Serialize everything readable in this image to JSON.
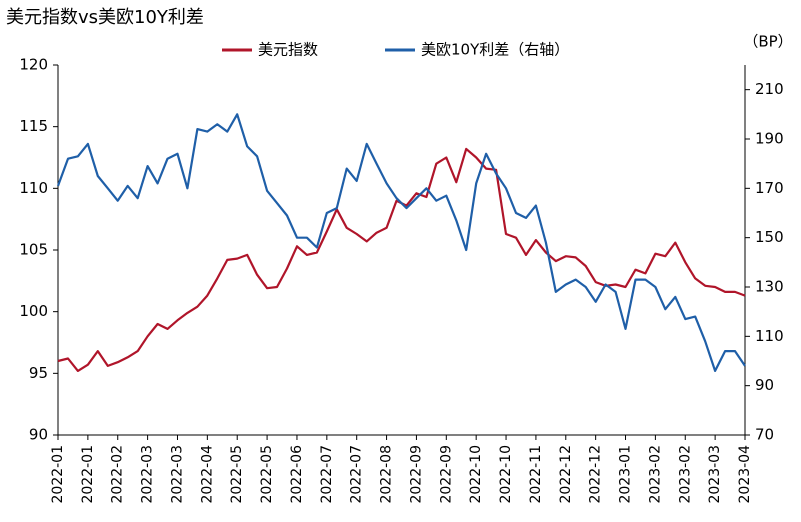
{
  "chart_data": {
    "type": "line",
    "title": "美元指数vs美欧10Y利差",
    "y2_label": "（BP）",
    "categories": [
      "2022-01",
      null,
      null,
      "2022-01",
      null,
      null,
      "2022-02",
      null,
      null,
      "2022-03",
      null,
      null,
      "2022-03",
      null,
      null,
      "2022-04",
      null,
      null,
      "2022-05",
      null,
      null,
      "2022-05",
      null,
      null,
      "2022-06",
      null,
      null,
      "2022-07",
      null,
      null,
      "2022-07",
      null,
      null,
      "2022-08",
      null,
      null,
      "2022-09",
      null,
      null,
      "2022-09",
      null,
      null,
      "2022-10",
      null,
      null,
      "2022-10",
      null,
      null,
      "2022-11",
      null,
      null,
      "2022-12",
      null,
      null,
      "2022-12",
      null,
      null,
      "2023-01",
      null,
      null,
      "2023-02",
      null,
      null,
      "2023-02",
      null,
      null,
      "2023-03",
      null,
      null,
      "2023-04"
    ],
    "series": [
      {
        "name": "美元指数",
        "color": "#b0152a",
        "axis": "y",
        "values": [
          96,
          96.2,
          95.2,
          95.7,
          96.8,
          95.6,
          95.9,
          96.3,
          96.8,
          98,
          99,
          98.6,
          99.3,
          99.9,
          100.4,
          101.3,
          102.7,
          104.2,
          104.3,
          104.6,
          103,
          101.9,
          102,
          103.5,
          105.3,
          104.6,
          104.8,
          106.5,
          108.3,
          106.8,
          106.3,
          105.7,
          106.4,
          106.8,
          109,
          108.6,
          109.6,
          109.3,
          112,
          112.5,
          110.5,
          113.2,
          112.5,
          111.6,
          111.5,
          106.3,
          106,
          104.6,
          105.8,
          104.8,
          104.1,
          104.5,
          104.4,
          103.7,
          102.4,
          102.1,
          102.2,
          102,
          103.4,
          103.1,
          104.7,
          104.5,
          105.6,
          104,
          102.7,
          102.1,
          102,
          101.6,
          101.6,
          101.3
        ]
      },
      {
        "name": "美欧10Y利差（右轴）",
        "color": "#1f5fa8",
        "axis": "y2",
        "values": [
          171,
          182,
          183,
          188,
          175,
          170,
          165,
          171,
          166,
          179,
          172,
          182,
          184,
          170,
          194,
          193,
          196,
          193,
          200,
          187,
          183,
          169,
          164,
          159,
          150,
          150,
          146,
          160,
          162,
          178,
          173,
          188,
          180,
          172,
          166,
          162,
          166,
          170,
          165,
          167,
          157,
          145,
          172,
          184,
          176,
          170,
          160,
          158,
          163,
          148,
          128,
          131,
          133,
          130,
          124,
          131,
          128,
          113,
          133,
          133,
          130,
          121,
          126,
          117,
          118,
          108,
          96,
          104,
          104,
          98
        ]
      }
    ],
    "ylim": [
      90,
      120
    ],
    "yticks": [
      90,
      95,
      100,
      105,
      110,
      115,
      120
    ],
    "y2lim": [
      70,
      220
    ],
    "y2ticks": [
      70,
      90,
      110,
      130,
      150,
      170,
      190,
      210
    ],
    "grid": false,
    "legend": "top"
  }
}
